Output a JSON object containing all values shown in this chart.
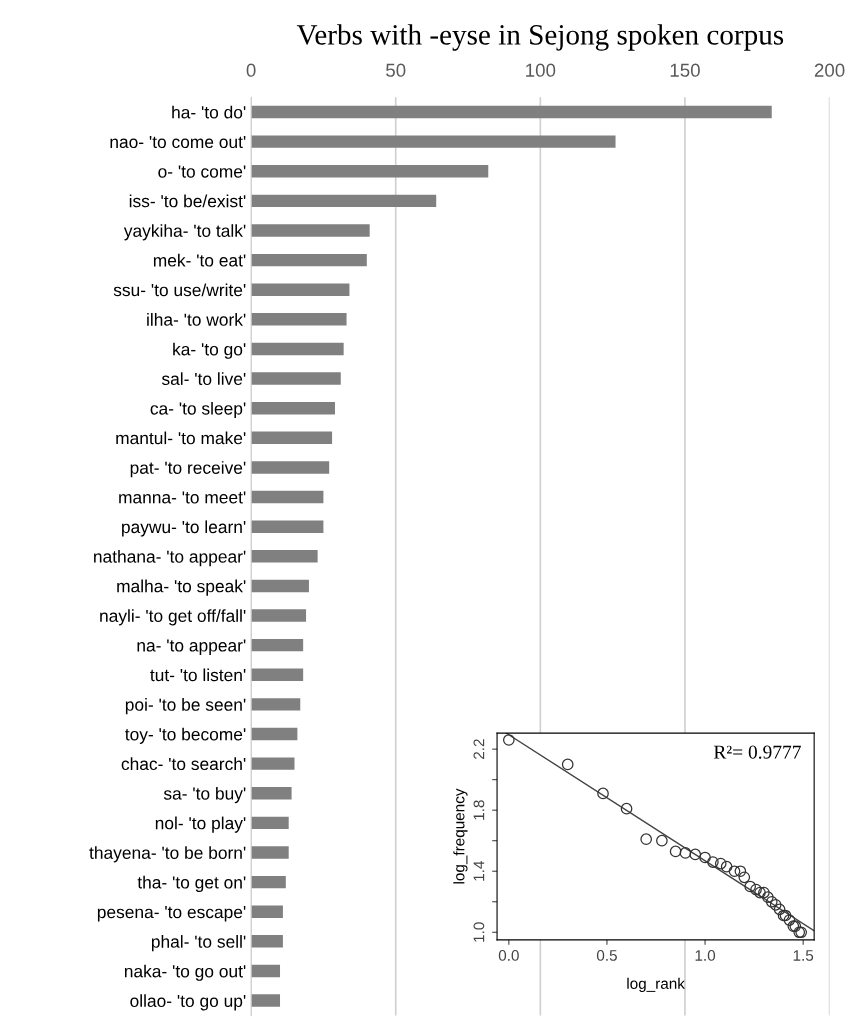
{
  "chart_data": [
    {
      "type": "bar",
      "orientation": "horizontal",
      "title": "Verbs with -eyse in Sejong spoken corpus",
      "categories": [
        "ha- 'to do'",
        "nao- 'to come out'",
        "o- 'to come'",
        "iss- 'to be/exist'",
        "yaykiha- 'to talk'",
        "mek- 'to eat'",
        "ssu- 'to use/write'",
        "ilha- 'to work'",
        "ka- 'to go'",
        "sal- 'to live'",
        "ca- 'to sleep'",
        "mantul- 'to make'",
        "pat- 'to receive'",
        "manna- 'to meet'",
        "paywu- 'to learn'",
        "nathana- 'to appear'",
        "malha- 'to speak'",
        "nayli- 'to get off/fall'",
        "na- 'to appear'",
        "tut- 'to listen'",
        "poi- 'to be seen'",
        "toy- 'to become'",
        "chac- 'to search'",
        "sa- 'to buy'",
        "nol- 'to play'",
        "thayena- 'to be born'",
        "tha- 'to get on'",
        "pesena- 'to escape'",
        "phal- 'to sell'",
        "naka- 'to go out'",
        "ollao- 'to go up'"
      ],
      "values": [
        180,
        126,
        82,
        64,
        41,
        40,
        34,
        33,
        32,
        31,
        29,
        28,
        27,
        25,
        25,
        23,
        20,
        19,
        18,
        18,
        17,
        16,
        15,
        14,
        13,
        13,
        12,
        11,
        11,
        10,
        10
      ],
      "color": "#808080",
      "xlim": [
        0,
        200
      ],
      "xticks": [
        0,
        50,
        100,
        150,
        200
      ],
      "grid": "x"
    },
    {
      "type": "scatter",
      "xlabel": "log_rank",
      "ylabel": "log_frequency",
      "annotations": [
        "R²= 0.9777"
      ],
      "xlim": [
        -0.06,
        1.556
      ],
      "ylim": [
        0.95,
        2.305
      ],
      "xticks": [
        {
          "value": 0,
          "label": "0.0"
        },
        0.5,
        {
          "value": 1,
          "label": "1.0"
        },
        1.5
      ],
      "yticks": [
        {
          "value": 1,
          "label": "1.0"
        },
        {
          "value": 1.2,
          "label": null
        },
        1.4,
        {
          "value": 1.6,
          "label": null
        },
        1.8,
        {
          "value": 2.0,
          "label": null
        },
        2.2
      ],
      "series": [
        {
          "type": "scatter",
          "color": "#333333",
          "marker": "circle",
          "x": [
            0,
            0.3,
            0.48,
            0.6,
            0.7,
            0.78,
            0.85,
            0.9,
            0.95,
            1.0,
            1.04,
            1.08,
            1.11,
            1.15,
            1.18,
            1.2,
            1.23,
            1.26,
            1.28,
            1.3,
            1.32,
            1.34,
            1.36,
            1.38,
            1.4,
            1.41,
            1.43,
            1.45,
            1.46,
            1.48,
            1.49
          ],
          "values": [
            2.26,
            2.1,
            1.91,
            1.81,
            1.61,
            1.6,
            1.53,
            1.52,
            1.51,
            1.49,
            1.46,
            1.45,
            1.43,
            1.4,
            1.4,
            1.36,
            1.3,
            1.28,
            1.26,
            1.26,
            1.23,
            1.2,
            1.18,
            1.15,
            1.11,
            1.11,
            1.08,
            1.04,
            1.04,
            1.0,
            1.0
          ]
        },
        {
          "type": "line",
          "color": "#444444",
          "x": [
            -0.013,
            1.556
          ],
          "values": [
            2.305,
            1.01
          ]
        }
      ]
    }
  ]
}
